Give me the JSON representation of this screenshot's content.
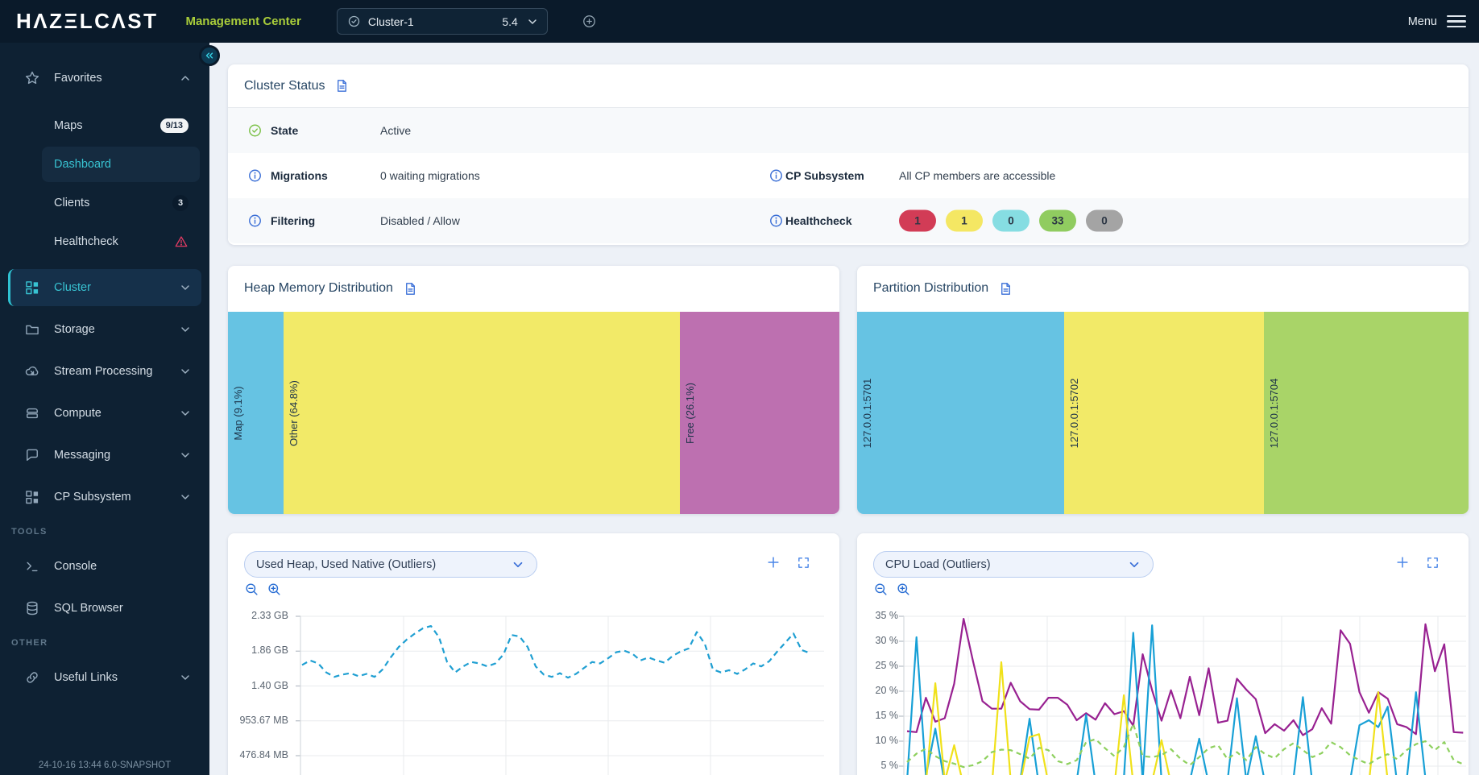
{
  "topbar": {
    "logo_text": "HΛZΞLCΛST",
    "app_title": "Management Center",
    "cluster_selector": {
      "name": "Cluster-1",
      "version": "5.4"
    },
    "menu_label": "Menu"
  },
  "sidebar": {
    "items": [
      {
        "id": "favorites",
        "label": "Favorites",
        "icon": "star",
        "chevron": "up",
        "level": "top"
      },
      {
        "id": "maps",
        "label": "Maps",
        "level": "sub",
        "badge": {
          "text": "9/13",
          "style": "light"
        }
      },
      {
        "id": "dashboard",
        "label": "Dashboard",
        "level": "sub",
        "active": true
      },
      {
        "id": "clients",
        "label": "Clients",
        "level": "sub",
        "badge": {
          "text": "3",
          "style": "dark"
        }
      },
      {
        "id": "healthcheck",
        "label": "Healthcheck",
        "level": "sub",
        "warning": true
      },
      {
        "id": "cluster",
        "label": "Cluster",
        "icon": "grid",
        "chevron": "down",
        "level": "top",
        "active": true
      },
      {
        "id": "storage",
        "label": "Storage",
        "icon": "folder",
        "chevron": "down",
        "level": "top"
      },
      {
        "id": "stream-processing",
        "label": "Stream Processing",
        "icon": "cloud",
        "chevron": "down",
        "level": "top"
      },
      {
        "id": "compute",
        "label": "Compute",
        "icon": "server",
        "chevron": "down",
        "level": "top"
      },
      {
        "id": "messaging",
        "label": "Messaging",
        "icon": "chat",
        "chevron": "down",
        "level": "top"
      },
      {
        "id": "cp-subsystem",
        "label": "CP Subsystem",
        "icon": "grid",
        "chevron": "down",
        "level": "top"
      },
      {
        "id": "tools-section",
        "label": "TOOLS",
        "level": "section"
      },
      {
        "id": "console",
        "label": "Console",
        "icon": "terminal",
        "level": "top"
      },
      {
        "id": "sql-browser",
        "label": "SQL Browser",
        "icon": "database",
        "level": "top"
      },
      {
        "id": "other-section",
        "label": "OTHER",
        "level": "section"
      },
      {
        "id": "useful-links",
        "label": "Useful Links",
        "icon": "link",
        "chevron": "down",
        "level": "top"
      }
    ],
    "footer": "24-10-16 13:44 6.0-SNAPSHOT"
  },
  "cluster_status": {
    "title": "Cluster Status",
    "state": {
      "label": "State",
      "value": "Active"
    },
    "migrations": {
      "label": "Migrations",
      "value": "0 waiting migrations"
    },
    "cp_subsystem": {
      "label": "CP Subsystem",
      "value": "All CP members are accessible"
    },
    "filtering": {
      "label": "Filtering",
      "value": "Disabled / Allow"
    },
    "healthcheck": {
      "label": "Healthcheck",
      "badges": [
        {
          "value": "1",
          "color": "#d23c56"
        },
        {
          "value": "1",
          "color": "#f4e763"
        },
        {
          "value": "0",
          "color": "#86dde2"
        },
        {
          "value": "33",
          "color": "#90cc60"
        },
        {
          "value": "0",
          "color": "#a4a4a4"
        }
      ]
    }
  },
  "chart_data": [
    {
      "id": "heap_memory_distribution",
      "type": "bar",
      "title": "Heap Memory Distribution",
      "segments": [
        {
          "label": "Map (9.1%)",
          "pct": 9.1,
          "color": "#66c3e3"
        },
        {
          "label": "Other (64.8%)",
          "pct": 64.8,
          "color": "#f2ea68"
        },
        {
          "label": "Free (26.1%)",
          "pct": 26.1,
          "color": "#bd70b0"
        }
      ]
    },
    {
      "id": "partition_distribution",
      "type": "bar",
      "title": "Partition Distribution",
      "segments": [
        {
          "label": "127.0.0.1:5701",
          "pct": 33.8,
          "color": "#66c3e3"
        },
        {
          "label": "127.0.0.1:5702",
          "pct": 32.7,
          "color": "#f2ea68"
        },
        {
          "label": "127.0.0.1:5704",
          "pct": 33.5,
          "color": "#a9d468"
        }
      ]
    },
    {
      "id": "used_heap_used_native",
      "type": "line",
      "selector_label": "Used Heap, Used Native (Outliers)",
      "y_ticks": [
        "2.33 GB",
        "1.86 GB",
        "1.40 GB",
        "953.67 MB",
        "476.84 MB"
      ],
      "y_top_gb": 2.33,
      "y_step_gb": 0.4657,
      "series": [
        {
          "name": "Used Heap",
          "color": "#1f9fd2",
          "dash": "7 5",
          "values_gb": [
            1.68,
            1.74,
            1.7,
            1.58,
            1.52,
            1.55,
            1.57,
            1.53,
            1.56,
            1.52,
            1.62,
            1.78,
            1.92,
            2.02,
            2.1,
            2.17,
            2.2,
            2.05,
            1.72,
            1.58,
            1.66,
            1.72,
            1.7,
            1.66,
            1.7,
            1.82,
            2.08,
            2.06,
            1.92,
            1.66,
            1.55,
            1.52,
            1.57,
            1.51,
            1.56,
            1.64,
            1.72,
            1.7,
            1.77,
            1.85,
            1.87,
            1.83,
            1.74,
            1.78,
            1.74,
            1.71,
            1.8,
            1.86,
            1.9,
            2.12,
            1.96,
            1.62,
            1.58,
            1.61,
            1.56,
            1.62,
            1.7,
            1.66,
            1.73,
            1.86,
            1.98,
            2.1,
            1.88,
            1.84
          ]
        }
      ]
    },
    {
      "id": "cpu_load",
      "type": "line",
      "selector_label": "CPU Load (Outliers)",
      "y_ticks": [
        "35 %",
        "30 %",
        "25 %",
        "20 %",
        "15 %",
        "10 %",
        "5 %"
      ],
      "y_top_pct": 35,
      "y_step_pct": 5,
      "series": [
        {
          "color": "#982191",
          "dash": null,
          "values_pct": [
            12.0,
            11.8,
            18.7,
            13.9,
            14.6,
            21.5,
            34.5,
            26.0,
            18.0,
            16.5,
            16.5,
            21.7,
            18.0,
            16.4,
            16.3,
            18.7,
            18.7,
            17.3,
            14.2,
            15.6,
            14.3,
            17.6,
            15.4,
            16.0,
            13.1,
            27.4,
            20.2,
            14.1,
            20.2,
            14.6,
            22.9,
            15.2,
            24.6,
            13.7,
            14.1,
            22.5,
            20.3,
            18.4,
            11.6,
            13.4,
            12.1,
            14.2,
            11.2,
            12.4,
            16.6,
            13.5,
            32.2,
            29.5,
            19.8,
            15.7,
            19.8,
            18.5,
            13.4,
            12.8,
            11.4,
            33.4,
            24.0,
            29.4,
            11.8,
            11.7
          ]
        },
        {
          "color": "#18a0d6",
          "dash": null,
          "values_pct": [
            2.0,
            30.8,
            3.0,
            12.5,
            1.5,
            1.0,
            2.0,
            1.5,
            2.0,
            1.0,
            1.5,
            2.5,
            2.0,
            14.5,
            1.0,
            2.0,
            1.5,
            2.5,
            2.0,
            15.3,
            1.5,
            1.0,
            2.0,
            2.5,
            31.7,
            2.0,
            33.2,
            2.0,
            2.5,
            1.5,
            2.0,
            10.5,
            1.5,
            1.0,
            2.0,
            18.6,
            2.0,
            11.0,
            1.5,
            1.0,
            2.0,
            2.5,
            18.8,
            1.5,
            1.0,
            2.0,
            1.5,
            2.0,
            13.2,
            14.2,
            12.8,
            16.9,
            1.5,
            2.0,
            19.8,
            2.5,
            1.0,
            2.0,
            1.5,
            1.0
          ]
        },
        {
          "color": "#f0e11a",
          "dash": null,
          "values_pct": [
            1.0,
            2.0,
            1.5,
            21.6,
            2.0,
            9.2,
            1.0,
            1.5,
            2.0,
            1.0,
            25.8,
            2.0,
            1.5,
            10.8,
            11.4,
            1.5,
            1.0,
            2.0,
            1.5,
            1.0,
            2.0,
            1.5,
            1.0,
            19.2,
            1.5,
            1.0,
            2.0,
            10.2,
            1.5,
            1.0,
            2.0,
            1.5,
            1.0,
            2.0,
            1.5,
            1.0,
            2.0,
            1.5,
            1.0,
            2.0,
            1.5,
            1.0,
            2.0,
            1.5,
            1.0,
            2.0,
            1.5,
            1.0,
            2.0,
            1.5,
            19.8,
            2.0,
            1.0,
            1.5,
            2.0,
            1.0,
            1.5,
            2.0,
            1.5,
            1.0
          ]
        },
        {
          "color": "#8ed05e",
          "dash": "6 5",
          "values_pct": [
            5.8,
            7.5,
            8.5,
            7.0,
            6.0,
            5.5,
            4.8,
            5.2,
            6.0,
            7.8,
            8.3,
            8.2,
            7.4,
            6.5,
            8.7,
            8.2,
            6.0,
            5.4,
            6.2,
            9.8,
            10.4,
            8.6,
            7.0,
            8.8,
            13.5,
            7.0,
            6.8,
            7.2,
            8.4,
            6.5,
            5.2,
            6.8,
            8.6,
            9.2,
            6.4,
            7.8,
            6.2,
            8.8,
            7.4,
            6.6,
            8.4,
            9.6,
            8.2,
            6.8,
            7.6,
            9.8,
            8.8,
            7.2,
            6.2,
            5.4,
            6.6,
            7.4,
            6.4,
            8.2,
            9.4,
            10.0,
            8.2,
            9.8,
            6.2,
            5.4
          ]
        }
      ]
    }
  ]
}
